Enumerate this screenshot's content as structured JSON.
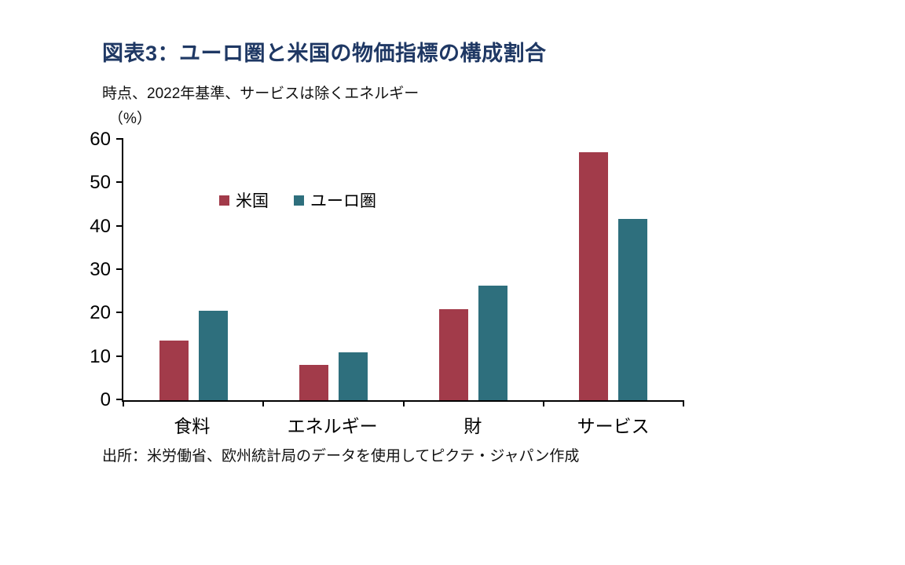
{
  "chart_data": {
    "type": "bar",
    "title": "図表3：ユーロ圏と米国の物価指標の構成割合",
    "subtitle": "時点、2022年基準、サービスは除くエネルギー",
    "ylabel": "（%）",
    "xlabel": "",
    "ylim": [
      0,
      60
    ],
    "yticks": [
      0,
      10,
      20,
      30,
      40,
      50,
      60
    ],
    "grid": false,
    "legend_position": "top-inside",
    "categories": [
      "食料",
      "エネルギー",
      "財",
      "サービス"
    ],
    "series": [
      {
        "key": "us",
        "name": "米国",
        "color": "#A23B4A",
        "values": [
          13.8,
          8.1,
          21.0,
          57.2
        ]
      },
      {
        "key": "euro",
        "name": "ユーロ圏",
        "color": "#2E6F7D",
        "values": [
          20.6,
          11.0,
          26.4,
          41.7
        ]
      }
    ],
    "title_color": "#1F3864",
    "source": "出所：米労働省、欧州統計局のデータを使用してピクテ・ジャパン作成"
  }
}
